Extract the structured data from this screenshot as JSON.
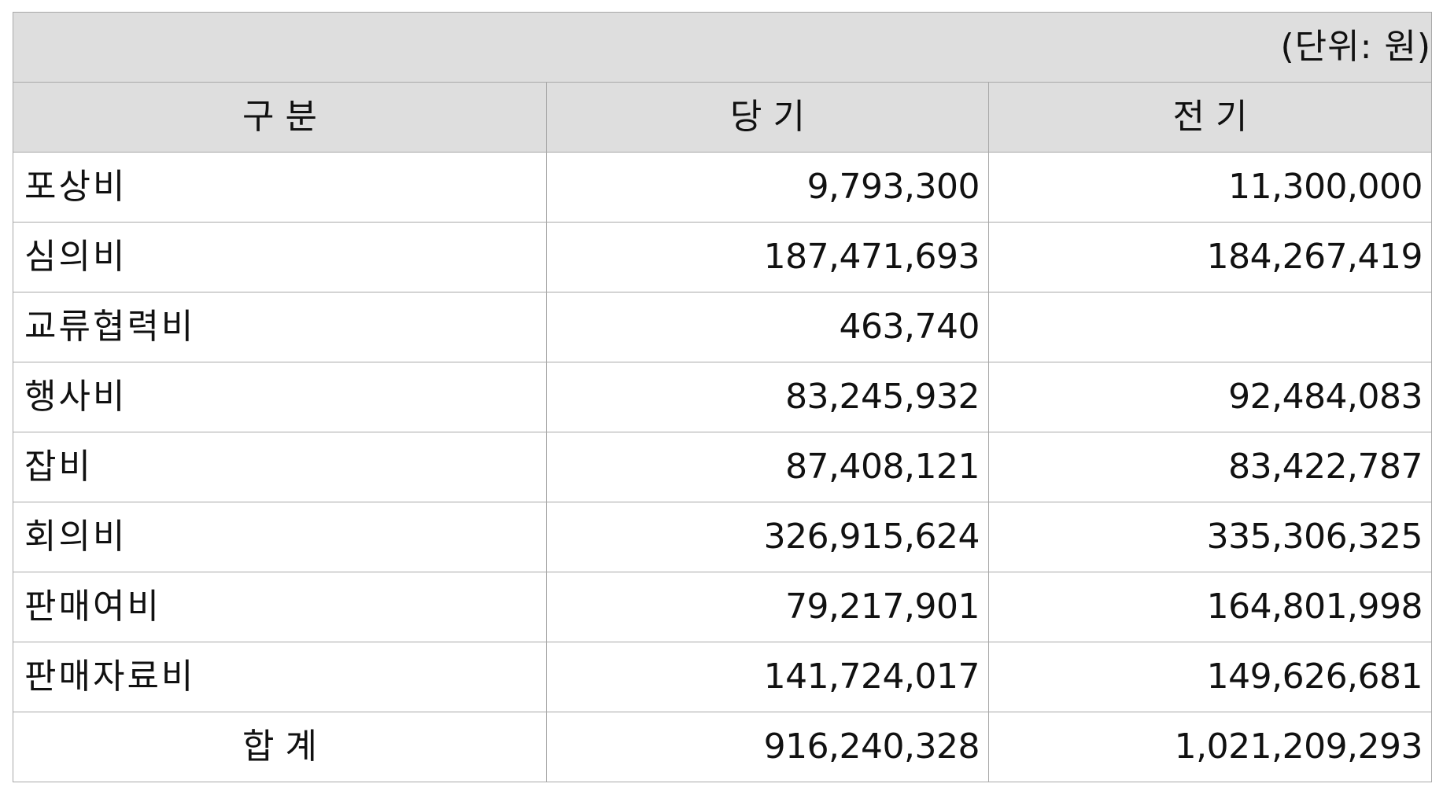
{
  "unit_label": "(단위: 원)",
  "headers": [
    "구 분",
    "당 기",
    "전 기"
  ],
  "rows": [
    {
      "label": "포상비",
      "current": "9,793,300",
      "prior": "11,300,000"
    },
    {
      "label": "심의비",
      "current": "187,471,693",
      "prior": "184,267,419"
    },
    {
      "label": "교류협력비",
      "current": "463,740",
      "prior": ""
    },
    {
      "label": "행사비",
      "current": "83,245,932",
      "prior": "92,484,083"
    },
    {
      "label": "잡비",
      "current": "87,408,121",
      "prior": "83,422,787"
    },
    {
      "label": "회의비",
      "current": "326,915,624",
      "prior": "335,306,325"
    },
    {
      "label": "판매여비",
      "current": "79,217,901",
      "prior": "164,801,998"
    },
    {
      "label": "판매자료비",
      "current": "141,724,017",
      "prior": "149,626,681"
    }
  ],
  "total": {
    "label": "합 계",
    "current": "916,240,328",
    "prior": "1,021,209,293"
  }
}
